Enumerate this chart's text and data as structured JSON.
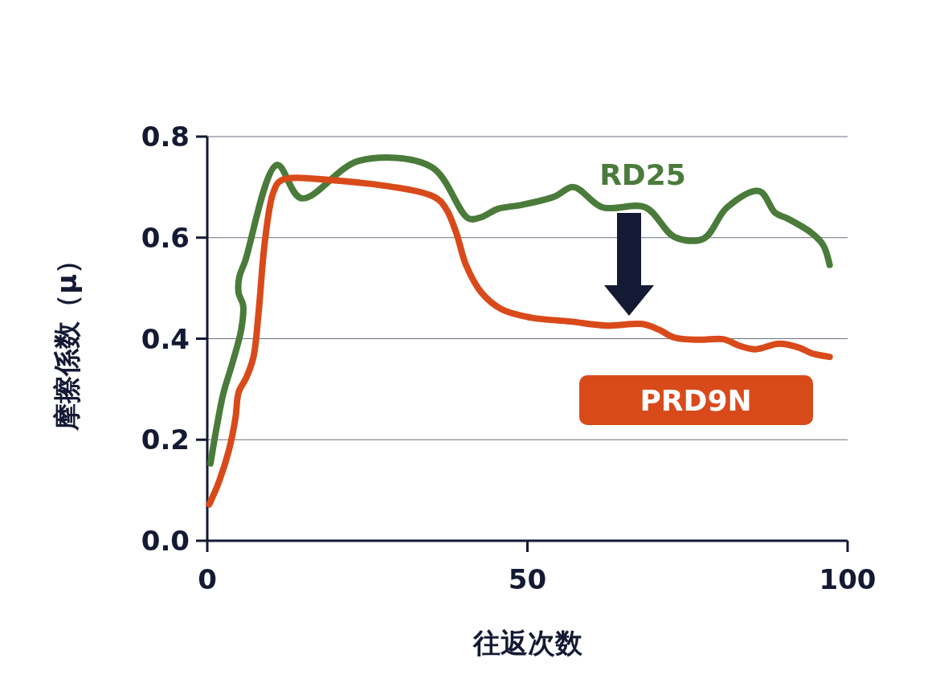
{
  "chart_data": {
    "type": "line",
    "xlabel": "往返次数",
    "ylabel": "摩擦係数（μ）",
    "xlim": [
      0,
      100
    ],
    "xticks": [
      0,
      50,
      100
    ],
    "ylim": [
      0,
      0.8
    ],
    "yticks": [
      {
        "value": 0,
        "label": "0.0"
      },
      {
        "value": 0.2,
        "label": "0.2"
      },
      {
        "value": 0.4,
        "label": "0.4"
      },
      {
        "value": 0.6,
        "label": "0.6"
      },
      {
        "value": 0.8,
        "label": "0.8"
      }
    ],
    "grid": "y",
    "marker": "none",
    "line_style": "solid",
    "series": [
      {
        "name": "RD25",
        "color": "#4a7b3a",
        "x": [
          0.5,
          1.5,
          2.5,
          4.0,
          5.3,
          5.6,
          4.9,
          5.0,
          5.9,
          10.9,
          14.7,
          23.7,
          35.0,
          40.8,
          42.9,
          45.4,
          49.2,
          54.2,
          57.2,
          61.7,
          68.4,
          73.0,
          77.5,
          81.2,
          86.2,
          88.7,
          90.6,
          94.4,
          96.2,
          97.2
        ],
        "values": [
          0.153,
          0.227,
          0.291,
          0.355,
          0.418,
          0.466,
          0.49,
          0.522,
          0.553,
          0.744,
          0.678,
          0.752,
          0.74,
          0.638,
          0.641,
          0.657,
          0.665,
          0.681,
          0.7,
          0.66,
          0.66,
          0.601,
          0.598,
          0.66,
          0.692,
          0.649,
          0.638,
          0.609,
          0.585,
          0.546
        ]
      },
      {
        "name": "PRD9N",
        "color": "#d94a1a",
        "x": [
          0.3,
          1.8,
          3.4,
          4.4,
          4.9,
          6.1,
          7.2,
          8.0,
          9.0,
          10.3,
          11.5,
          19.1,
          35.4,
          37.3,
          38.9,
          40.4,
          42.9,
          46.0,
          50.4,
          56.7,
          62.4,
          68.0,
          70.5,
          73.0,
          76.8,
          80.6,
          83.1,
          85.6,
          89.3,
          92.5,
          94.4,
          97.2
        ],
        "values": [
          0.072,
          0.116,
          0.18,
          0.243,
          0.294,
          0.323,
          0.363,
          0.45,
          0.593,
          0.689,
          0.713,
          0.714,
          0.681,
          0.657,
          0.609,
          0.546,
          0.49,
          0.458,
          0.442,
          0.434,
          0.426,
          0.429,
          0.418,
          0.402,
          0.398,
          0.399,
          0.386,
          0.379,
          0.39,
          0.382,
          0.371,
          0.364
        ]
      }
    ]
  }
}
